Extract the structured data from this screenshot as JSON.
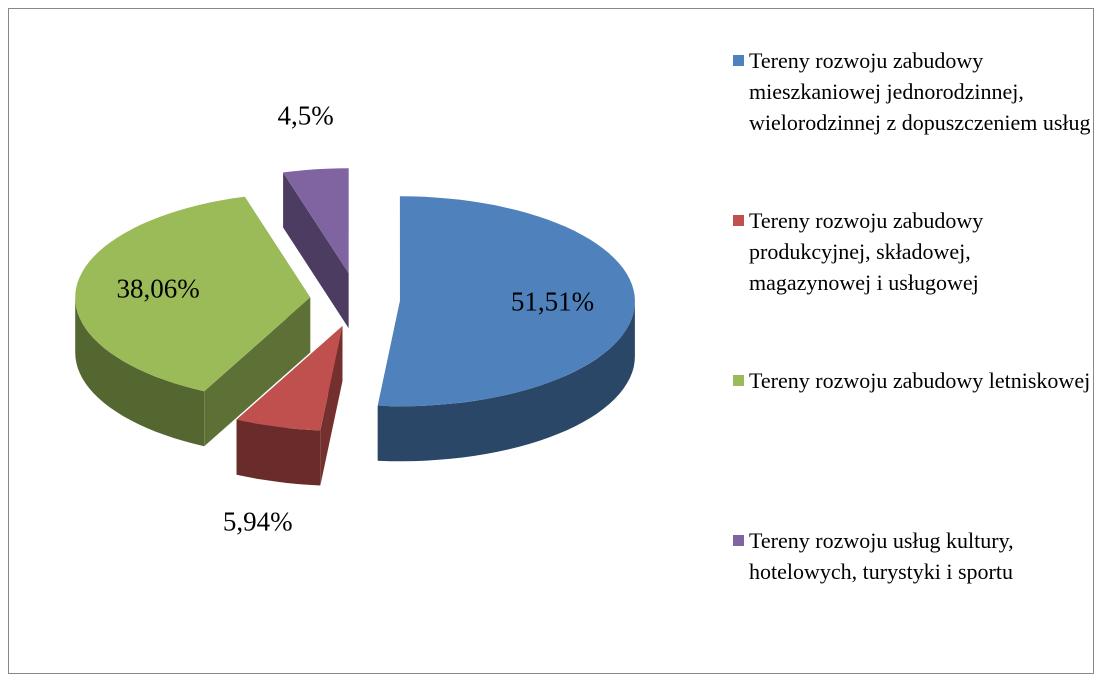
{
  "chart_data": {
    "type": "pie",
    "series": [
      {
        "name": "Tereny rozwoju zabudowy mieszkaniowej jednorodzinnej, wielorodzinnej z dopuszczeniem usług",
        "color": "#4f81bd"
      },
      {
        "name": "Tereny rozwoju zabudowy produkcyjnej, składowej, magazynowej i usługowej",
        "color": "#c0504d"
      },
      {
        "name": "Tereny rozwoju zabudowy letniskowej",
        "color": "#9bbb59"
      },
      {
        "name": "Tereny rozwoju usług kultury, hotelowych, turystyki i sportu",
        "color": "#8064a2"
      }
    ],
    "values": [
      51.51,
      5.94,
      38.06,
      4.5
    ],
    "value_labels": [
      "51,51%",
      "5,94%",
      "38,06%",
      "4,5%"
    ],
    "legend": "right"
  }
}
